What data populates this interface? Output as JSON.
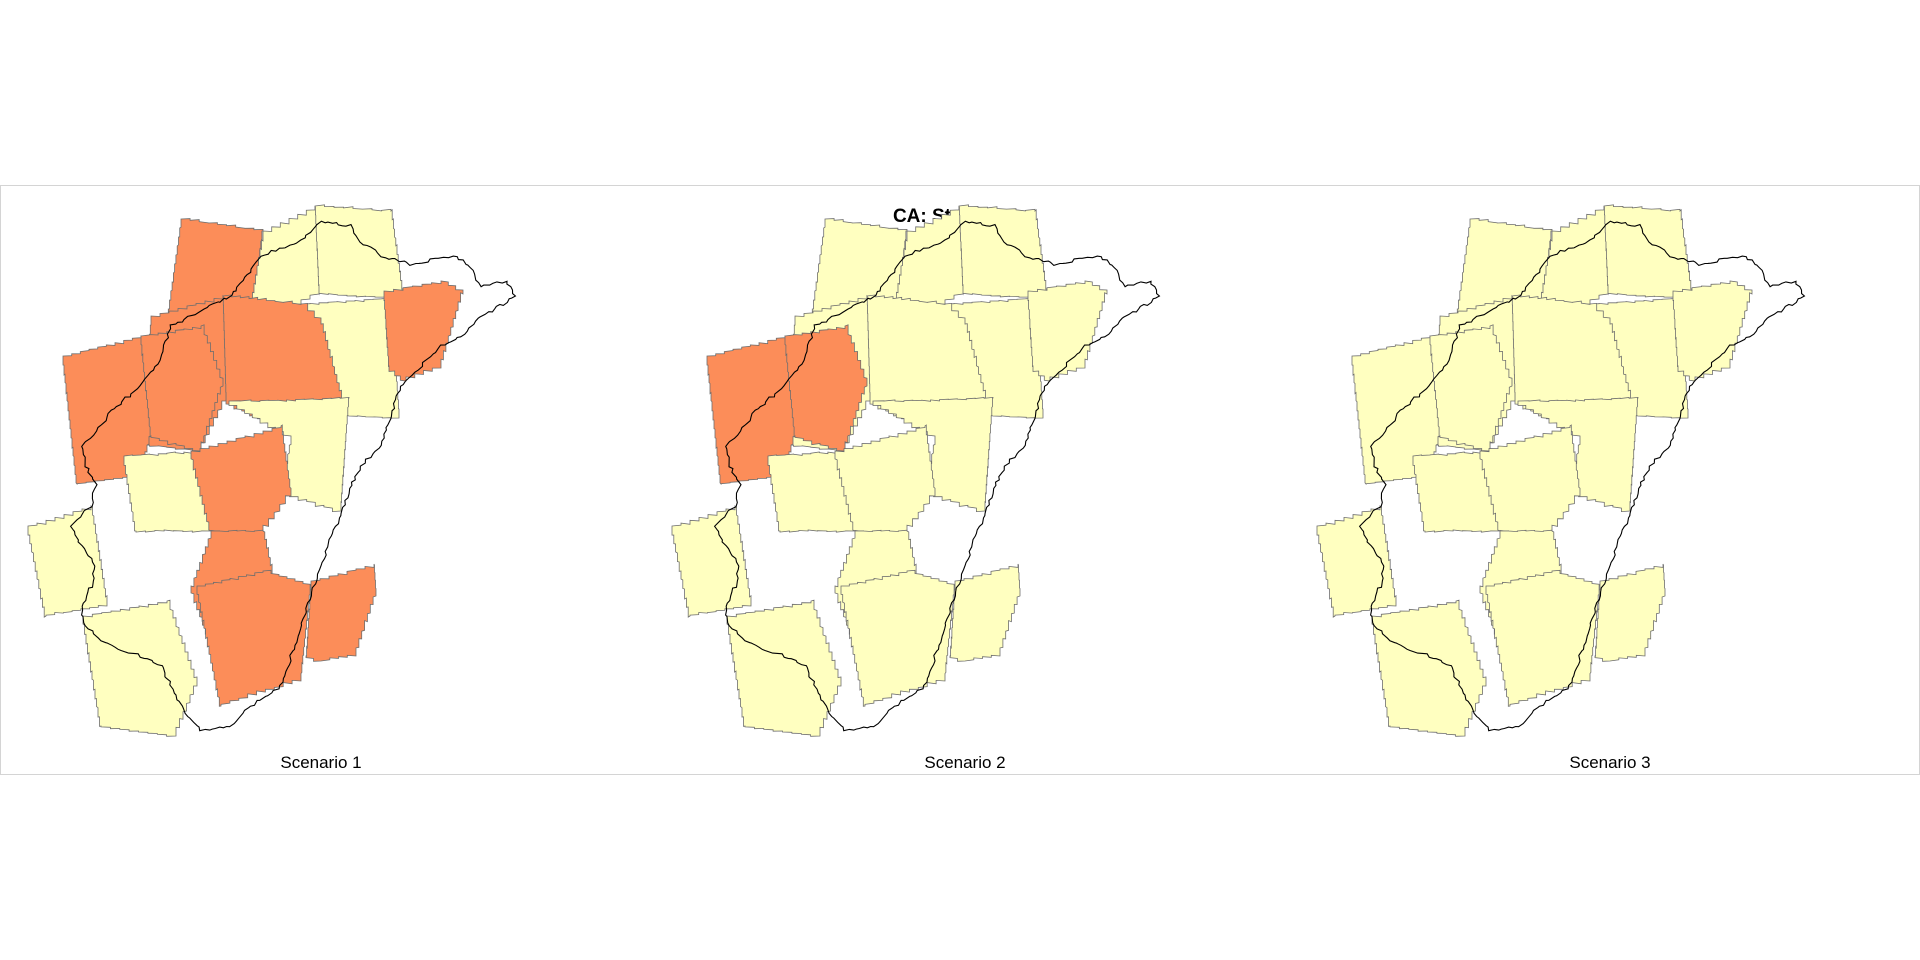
{
  "title": "CA: Stanislaus",
  "colors": {
    "background": "#ffffff",
    "frame": "#d4d4d4",
    "fill_low": "#ffffc0",
    "fill_high": "#fc8d59",
    "cell_outline": "#6e6e6e",
    "river_outline": "#000000"
  },
  "cell_ids": [
    "c1",
    "c2",
    "c3",
    "c4",
    "c5",
    "c6",
    "c7",
    "c8",
    "c9",
    "c10",
    "c11",
    "c12",
    "c13",
    "c14",
    "c15",
    "c16",
    "c17"
  ],
  "panels": [
    {
      "label": "Scenario 1",
      "highlighted_cells": [
        "c1",
        "c5",
        "c6",
        "c7",
        "c8",
        "c9",
        "c12",
        "c13",
        "c16",
        "c17"
      ]
    },
    {
      "label": "Scenario 2",
      "highlighted_cells": [
        "c7",
        "c8"
      ]
    },
    {
      "label": "Scenario 3",
      "highlighted_cells": []
    }
  ]
}
